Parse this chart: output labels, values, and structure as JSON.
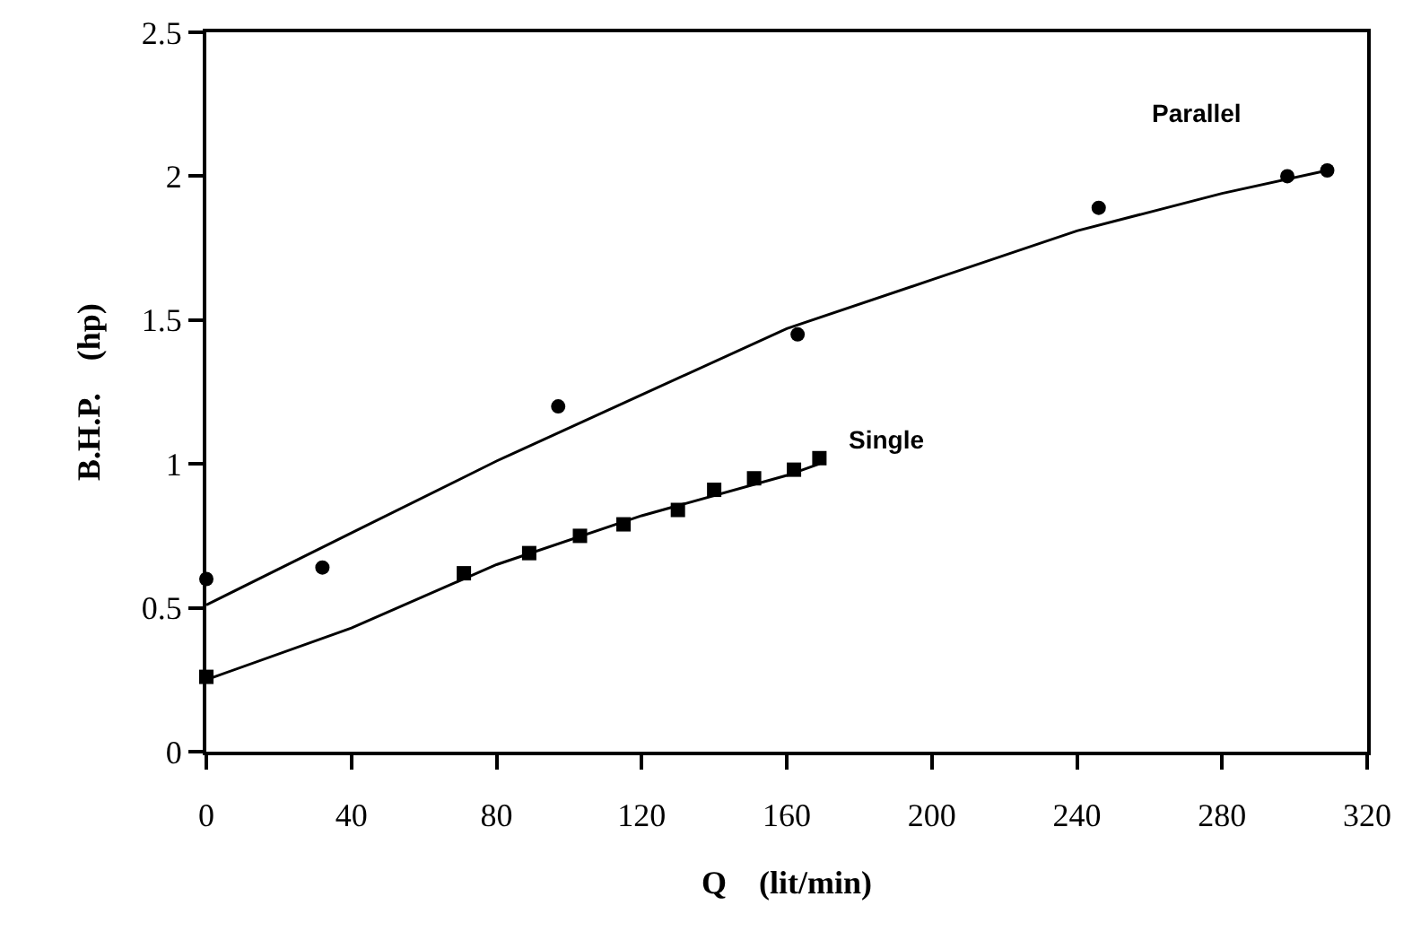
{
  "chart_data": {
    "type": "scatter",
    "xlabel": "Q    (lit/min)",
    "ylabel": "B.H.P.    (hp)",
    "xlim": [
      0,
      320
    ],
    "xticks": [
      0,
      40,
      80,
      120,
      160,
      200,
      240,
      280,
      320
    ],
    "ylim": [
      0,
      2.5
    ],
    "yticks": [
      0,
      0.5,
      1,
      1.5,
      2,
      2.5
    ],
    "grid": false,
    "legend": false,
    "series": [
      {
        "name": "Parallel",
        "color": "#000000",
        "marker": "circle",
        "x": [
          0,
          32,
          97,
          163,
          246,
          298,
          309
        ],
        "values": [
          0.6,
          0.64,
          1.2,
          1.45,
          1.89,
          2.0,
          2.02
        ]
      },
      {
        "name": "Single",
        "color": "#000000",
        "marker": "square",
        "x": [
          0,
          71,
          89,
          103,
          115,
          130,
          140,
          151,
          162,
          169
        ],
        "values": [
          0.26,
          0.62,
          0.69,
          0.75,
          0.79,
          0.84,
          0.91,
          0.95,
          0.98,
          1.02
        ]
      },
      {
        "type": "line",
        "color": "#000000",
        "marker": "none",
        "x": [
          0,
          40,
          80,
          120,
          160,
          200,
          240,
          280,
          309
        ],
        "values": [
          0.51,
          0.76,
          1.01,
          1.24,
          1.47,
          1.64,
          1.81,
          1.94,
          2.02
        ]
      },
      {
        "type": "line",
        "color": "#000000",
        "marker": "none",
        "x": [
          0,
          40,
          80,
          120,
          160,
          169
        ],
        "values": [
          0.25,
          0.43,
          0.65,
          0.82,
          0.96,
          1.0
        ]
      }
    ]
  }
}
